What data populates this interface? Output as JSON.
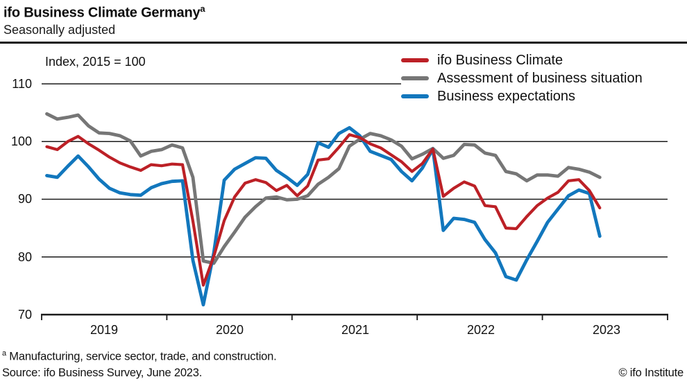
{
  "header": {
    "title": "ifo Business Climate Germany",
    "title_superscript": "a",
    "subtitle": "Seasonally adjusted"
  },
  "chart_data": {
    "type": "line",
    "title": "ifo Business Climate Germany",
    "index_note": "Index, 2015 = 100",
    "x_range": "monthly, Jan 2019 - Jun 2023",
    "x_tick_labels": [
      "2019",
      "2020",
      "2021",
      "2022",
      "2023"
    ],
    "y_tick_labels": [
      "110",
      "100",
      "90",
      "80",
      "70"
    ],
    "y_gridlines": [
      110,
      100,
      90,
      80
    ],
    "y_baseline": 70,
    "ylim": [
      70,
      110
    ],
    "grid": "horizontal",
    "legend_position": "top-right",
    "series": [
      {
        "name": "ifo Business Climate",
        "color": "#bc2026",
        "values": [
          99.1,
          98.6,
          100.0,
          100.9,
          99.6,
          98.5,
          97.3,
          96.3,
          95.6,
          95.0,
          96.0,
          95.8,
          96.1,
          96.0,
          86.2,
          75.1,
          80.1,
          86.3,
          90.4,
          92.8,
          93.4,
          92.9,
          91.5,
          92.4,
          90.6,
          92.3,
          96.8,
          97.0,
          99.0,
          101.2,
          100.7,
          99.6,
          98.9,
          97.7,
          96.5,
          94.8,
          96.2,
          98.7,
          90.5,
          91.9,
          93.0,
          92.3,
          88.9,
          88.7,
          85.0,
          84.9,
          87.0,
          88.9,
          90.2,
          91.2,
          93.2,
          93.4,
          91.5,
          88.5
        ]
      },
      {
        "name": "Assessment of business situation",
        "color": "#767676",
        "values": [
          104.8,
          103.9,
          104.2,
          104.6,
          102.7,
          101.5,
          101.4,
          101.0,
          100.1,
          97.5,
          98.3,
          98.6,
          99.4,
          98.9,
          93.8,
          79.3,
          78.9,
          81.8,
          84.3,
          86.9,
          88.7,
          90.2,
          90.4,
          89.9,
          90.0,
          90.6,
          92.6,
          93.8,
          95.3,
          99.2,
          100.4,
          101.4,
          101.0,
          100.3,
          99.2,
          97.0,
          97.8,
          98.8,
          97.1,
          97.6,
          99.5,
          99.4,
          98.0,
          97.6,
          94.8,
          94.4,
          93.2,
          94.2,
          94.2,
          94.0,
          95.5,
          95.2,
          94.7,
          93.8
        ]
      },
      {
        "name": "Business expectations",
        "color": "#1277bd",
        "values": [
          94.1,
          93.8,
          95.7,
          97.5,
          95.6,
          93.5,
          91.9,
          91.1,
          90.8,
          90.7,
          92.0,
          92.7,
          93.1,
          93.2,
          79.4,
          71.7,
          80.7,
          93.3,
          95.2,
          96.2,
          97.2,
          97.1,
          95.0,
          93.8,
          92.4,
          94.3,
          99.8,
          99.0,
          101.4,
          102.4,
          101.0,
          98.3,
          97.6,
          96.9,
          94.8,
          93.2,
          95.4,
          98.7,
          84.6,
          86.7,
          86.5,
          86.0,
          83.0,
          80.7,
          76.6,
          76.0,
          79.5,
          82.7,
          86.0,
          88.3,
          90.6,
          91.6,
          91.0,
          83.6
        ]
      }
    ]
  },
  "footer": {
    "footnote_marker": "a",
    "footnote_text": " Manufacturing, service sector, trade, and construction.",
    "source": "Source: ifo Business Survey, June 2023.",
    "copyright": "© ifo Institute"
  }
}
